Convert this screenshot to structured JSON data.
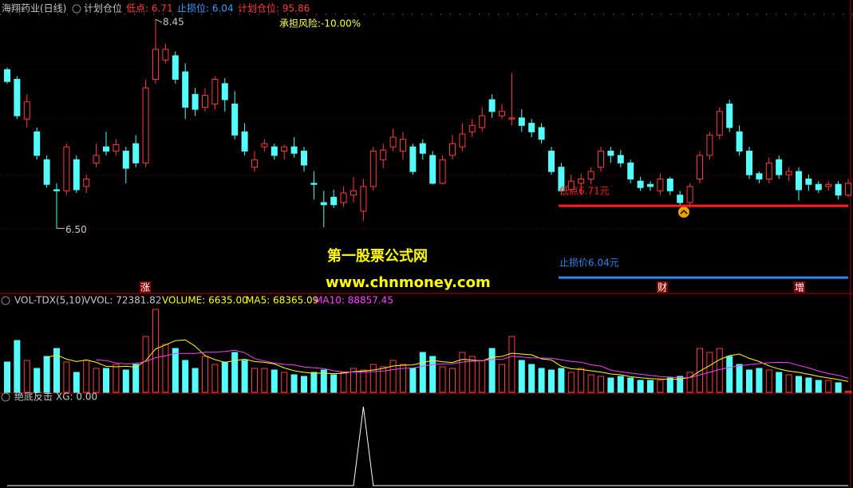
{
  "header": {
    "title": "海翔药业(日线)",
    "indicator": "计划仓位",
    "items": [
      {
        "text": "低点: 6.71",
        "color": "#ff3c3c"
      },
      {
        "text": "止损位: 6.04",
        "color": "#3c9cff"
      },
      {
        "text": "计划仓位: 95.86",
        "color": "#ff3c3c"
      }
    ],
    "annotation": "承担风险:-10.00%"
  },
  "watermark": [
    "第一股票公式网",
    "www.chnmoney.com"
  ],
  "chart_data": [
    {
      "type": "candlestick",
      "open": [
        7.98,
        7.89,
        7.52,
        7.4,
        7.14,
        6.86,
        6.85,
        7.14,
        6.89,
        7.11,
        7.26,
        7.22,
        7.22,
        7.29,
        7.11,
        7.89,
        8.07,
        8.11,
        7.96,
        7.75,
        7.63,
        7.66,
        7.85,
        7.66,
        7.4,
        7.07,
        7.26,
        7.26,
        7.22,
        7.26,
        7.22,
        6.92,
        6.74,
        6.79,
        6.74,
        6.81,
        6.66,
        6.89,
        7.14,
        7.26,
        7.22,
        7.26,
        7.29,
        7.18,
        6.92,
        7.18,
        7.26,
        7.4,
        7.44,
        7.7,
        7.55,
        7.52,
        7.53,
        7.48,
        7.44,
        7.22,
        7.07,
        6.86,
        6.92,
        6.96,
        7.07,
        7.22,
        7.18,
        7.11,
        6.94,
        6.91,
        6.85,
        6.96,
        6.81,
        6.74,
        6.96,
        7.18,
        7.37,
        7.66,
        7.4,
        7.22,
        7.01,
        6.96,
        7.14,
        7.0,
        7.03,
        6.96,
        6.91,
        6.89,
        6.91,
        6.81
      ],
      "high": [
        8.0,
        7.92,
        7.75,
        7.44,
        7.18,
        6.92,
        7.29,
        7.18,
        7.0,
        7.29,
        7.4,
        7.33,
        7.26,
        7.37,
        7.89,
        8.45,
        8.22,
        8.15,
        8.04,
        7.81,
        7.81,
        7.92,
        7.9,
        7.78,
        7.48,
        7.22,
        7.33,
        7.29,
        7.28,
        7.35,
        7.26,
        7.03,
        6.85,
        6.86,
        6.89,
        6.98,
        6.96,
        7.26,
        7.29,
        7.43,
        7.4,
        7.29,
        7.33,
        7.22,
        7.18,
        7.37,
        7.48,
        7.52,
        7.63,
        7.75,
        7.66,
        7.95,
        7.61,
        7.52,
        7.48,
        7.26,
        7.11,
        7.0,
        7.01,
        7.07,
        7.26,
        7.26,
        7.23,
        7.14,
        6.98,
        6.94,
        7.01,
        6.98,
        6.85,
        6.92,
        7.22,
        7.4,
        7.63,
        7.7,
        7.46,
        7.26,
        7.03,
        7.16,
        7.18,
        7.07,
        7.07,
        7.0,
        6.94,
        6.94,
        6.94,
        6.96
      ],
      "low": [
        7.85,
        7.52,
        7.44,
        7.14,
        6.88,
        6.5,
        6.81,
        6.83,
        6.83,
        7.07,
        7.18,
        7.18,
        6.92,
        7.07,
        7.07,
        7.85,
        8.04,
        7.85,
        7.52,
        7.55,
        7.59,
        7.61,
        7.59,
        7.33,
        7.18,
        7.03,
        7.22,
        7.14,
        7.14,
        7.16,
        7.03,
        6.77,
        6.51,
        6.69,
        6.7,
        6.74,
        6.57,
        6.85,
        7.06,
        7.22,
        7.14,
        7.0,
        7.14,
        6.91,
        6.91,
        7.14,
        7.22,
        7.35,
        7.4,
        7.53,
        7.52,
        7.46,
        7.4,
        7.35,
        7.29,
        7.0,
        6.81,
        6.83,
        6.81,
        6.91,
        7.03,
        7.11,
        7.07,
        6.92,
        6.85,
        6.85,
        6.81,
        6.81,
        6.72,
        6.69,
        6.92,
        7.14,
        7.33,
        7.4,
        7.18,
        6.96,
        6.92,
        6.92,
        6.96,
        6.94,
        6.76,
        6.85,
        6.83,
        6.85,
        6.77,
        6.79
      ],
      "close": [
        7.87,
        7.55,
        7.68,
        7.18,
        6.91,
        6.85,
        7.26,
        6.86,
        6.96,
        7.18,
        7.22,
        7.28,
        7.06,
        7.11,
        7.81,
        8.17,
        8.17,
        7.89,
        7.63,
        7.61,
        7.74,
        7.89,
        7.7,
        7.37,
        7.22,
        7.14,
        7.29,
        7.18,
        7.26,
        7.2,
        7.09,
        6.91,
        6.72,
        6.72,
        6.83,
        6.85,
        6.89,
        7.22,
        7.23,
        7.35,
        7.33,
        7.03,
        7.2,
        6.92,
        7.14,
        7.29,
        7.38,
        7.46,
        7.55,
        7.59,
        7.59,
        7.53,
        7.46,
        7.4,
        7.33,
        7.03,
        6.85,
        6.94,
        6.96,
        7.03,
        7.22,
        7.18,
        7.11,
        6.96,
        6.88,
        6.89,
        6.96,
        6.85,
        6.74,
        6.89,
        7.18,
        7.37,
        7.59,
        7.44,
        7.22,
        7.0,
        6.96,
        7.11,
        7.0,
        7.03,
        6.86,
        6.91,
        6.86,
        6.91,
        6.81,
        6.92
      ],
      "ylim": [
        5.9,
        8.63
      ],
      "up_color": "#ff3c3c",
      "down_color": "#54fcfc",
      "max_label": "8.45",
      "min_label": "6.50",
      "levels": [
        {
          "value": 6.71,
          "label": "低点6.71元",
          "color": "#ff2020"
        },
        {
          "value": 6.04,
          "label": "止损价6.04元",
          "color": "#2f86e8"
        }
      ],
      "signals": [
        "涨",
        "财",
        "增"
      ]
    },
    {
      "type": "bar",
      "title": "VOL-TDX(5,10)",
      "stats": [
        {
          "text": "VVOL: 72381.82",
          "color": "#c8c8c8"
        },
        {
          "text": "VOLUME: 6635.00",
          "color": "#ffff00"
        },
        {
          "text": "MA5: 68365.09",
          "color": "#ffff00"
        },
        {
          "text": "MA10: 88857.45",
          "color": "#ff40ff"
        }
      ],
      "values": [
        190000,
        325000,
        200000,
        150000,
        225000,
        275000,
        190000,
        125000,
        200000,
        150000,
        150000,
        175000,
        140000,
        175000,
        350000,
        520000,
        300000,
        275000,
        200000,
        150000,
        225000,
        175000,
        190000,
        250000,
        200000,
        150000,
        150000,
        140000,
        125000,
        110000,
        100000,
        125000,
        140000,
        110000,
        125000,
        150000,
        140000,
        175000,
        160000,
        200000,
        175000,
        150000,
        250000,
        225000,
        160000,
        150000,
        250000,
        225000,
        200000,
        275000,
        175000,
        350000,
        200000,
        175000,
        150000,
        140000,
        150000,
        125000,
        150000,
        110000,
        100000,
        90000,
        100000,
        90000,
        75000,
        75000,
        75000,
        90000,
        100000,
        125000,
        275000,
        250000,
        275000,
        225000,
        175000,
        140000,
        150000,
        140000,
        125000,
        110000,
        100000,
        90000,
        75000,
        75000,
        60000,
        6635
      ],
      "series": [
        {
          "color": "#ffff00",
          "values": [
            null,
            null,
            null,
            null,
            218000,
            235000,
            208000,
            193000,
            203000,
            188000,
            163000,
            160000,
            163000,
            158000,
            198000,
            272000,
            297000,
            324000,
            329000,
            289000,
            230000,
            205000,
            188000,
            198000,
            208000,
            193000,
            188000,
            178000,
            153000,
            135000,
            125000,
            120000,
            120000,
            117000,
            120000,
            130000,
            133000,
            140000,
            150000,
            165000,
            170000,
            172000,
            187000,
            200000,
            192000,
            187000,
            207000,
            202000,
            197000,
            220000,
            225000,
            245000,
            240000,
            235000,
            210000,
            203000,
            163000,
            148000,
            143000,
            135000,
            127000,
            115000,
            110000,
            98000,
            91000,
            86000,
            83000,
            81000,
            83000,
            93000,
            133000,
            168000,
            205000,
            230000,
            240000,
            213000,
            193000,
            166000,
            146000,
            133000,
            125000,
            113000,
            100000,
            90000,
            80000,
            68365.09
          ]
        },
        {
          "color": "#ff40ff",
          "values": [
            null,
            null,
            null,
            null,
            null,
            null,
            null,
            null,
            null,
            203000,
            199000,
            184000,
            178000,
            180500,
            193000,
            217500,
            228500,
            243500,
            243500,
            243500,
            251000,
            251000,
            256000,
            263500,
            248500,
            211500,
            196500,
            183000,
            175500,
            171500,
            159000,
            154000,
            149000,
            135000,
            127500,
            127500,
            126500,
            130000,
            133500,
            142500,
            150000,
            152500,
            163500,
            175000,
            178500,
            178500,
            189500,
            194500,
            198500,
            206000,
            206000,
            226000,
            221000,
            216000,
            215000,
            214000,
            204000,
            194000,
            189000,
            172500,
            165000,
            139000,
            129000,
            120500,
            113000,
            106500,
            99000,
            95500,
            90500,
            92000,
            109500,
            125500,
            143000,
            156500,
            166500,
            173000,
            180500,
            185500,
            188000,
            186500,
            169000,
            153000,
            133000,
            118000,
            106500,
            88857.45
          ]
        }
      ],
      "ylim": [
        0,
        600000
      ]
    },
    {
      "type": "line",
      "title": "绝底反击",
      "stats": [
        {
          "text": "XG: 0.00",
          "color": "#c8c8c8"
        }
      ],
      "values": [
        0,
        0,
        0,
        0,
        0,
        0,
        0,
        0,
        0,
        0,
        0,
        0,
        0,
        0,
        0,
        0,
        0,
        0,
        0,
        0,
        0,
        0,
        0,
        0,
        0,
        0,
        0,
        0,
        0,
        0,
        0,
        0,
        0,
        0,
        0,
        0,
        1,
        0,
        0,
        0,
        0,
        0,
        0,
        0,
        0,
        0,
        0,
        0,
        0,
        0,
        0,
        0,
        0,
        0,
        0,
        0,
        0,
        0,
        0,
        0,
        0,
        0,
        0,
        0,
        0,
        0,
        0,
        0,
        0,
        0,
        0,
        0,
        0,
        0,
        0,
        0,
        0,
        0,
        0,
        0,
        0,
        0,
        0,
        0,
        0,
        0
      ],
      "color": "#ffffff",
      "ylim": [
        0,
        1
      ]
    }
  ]
}
